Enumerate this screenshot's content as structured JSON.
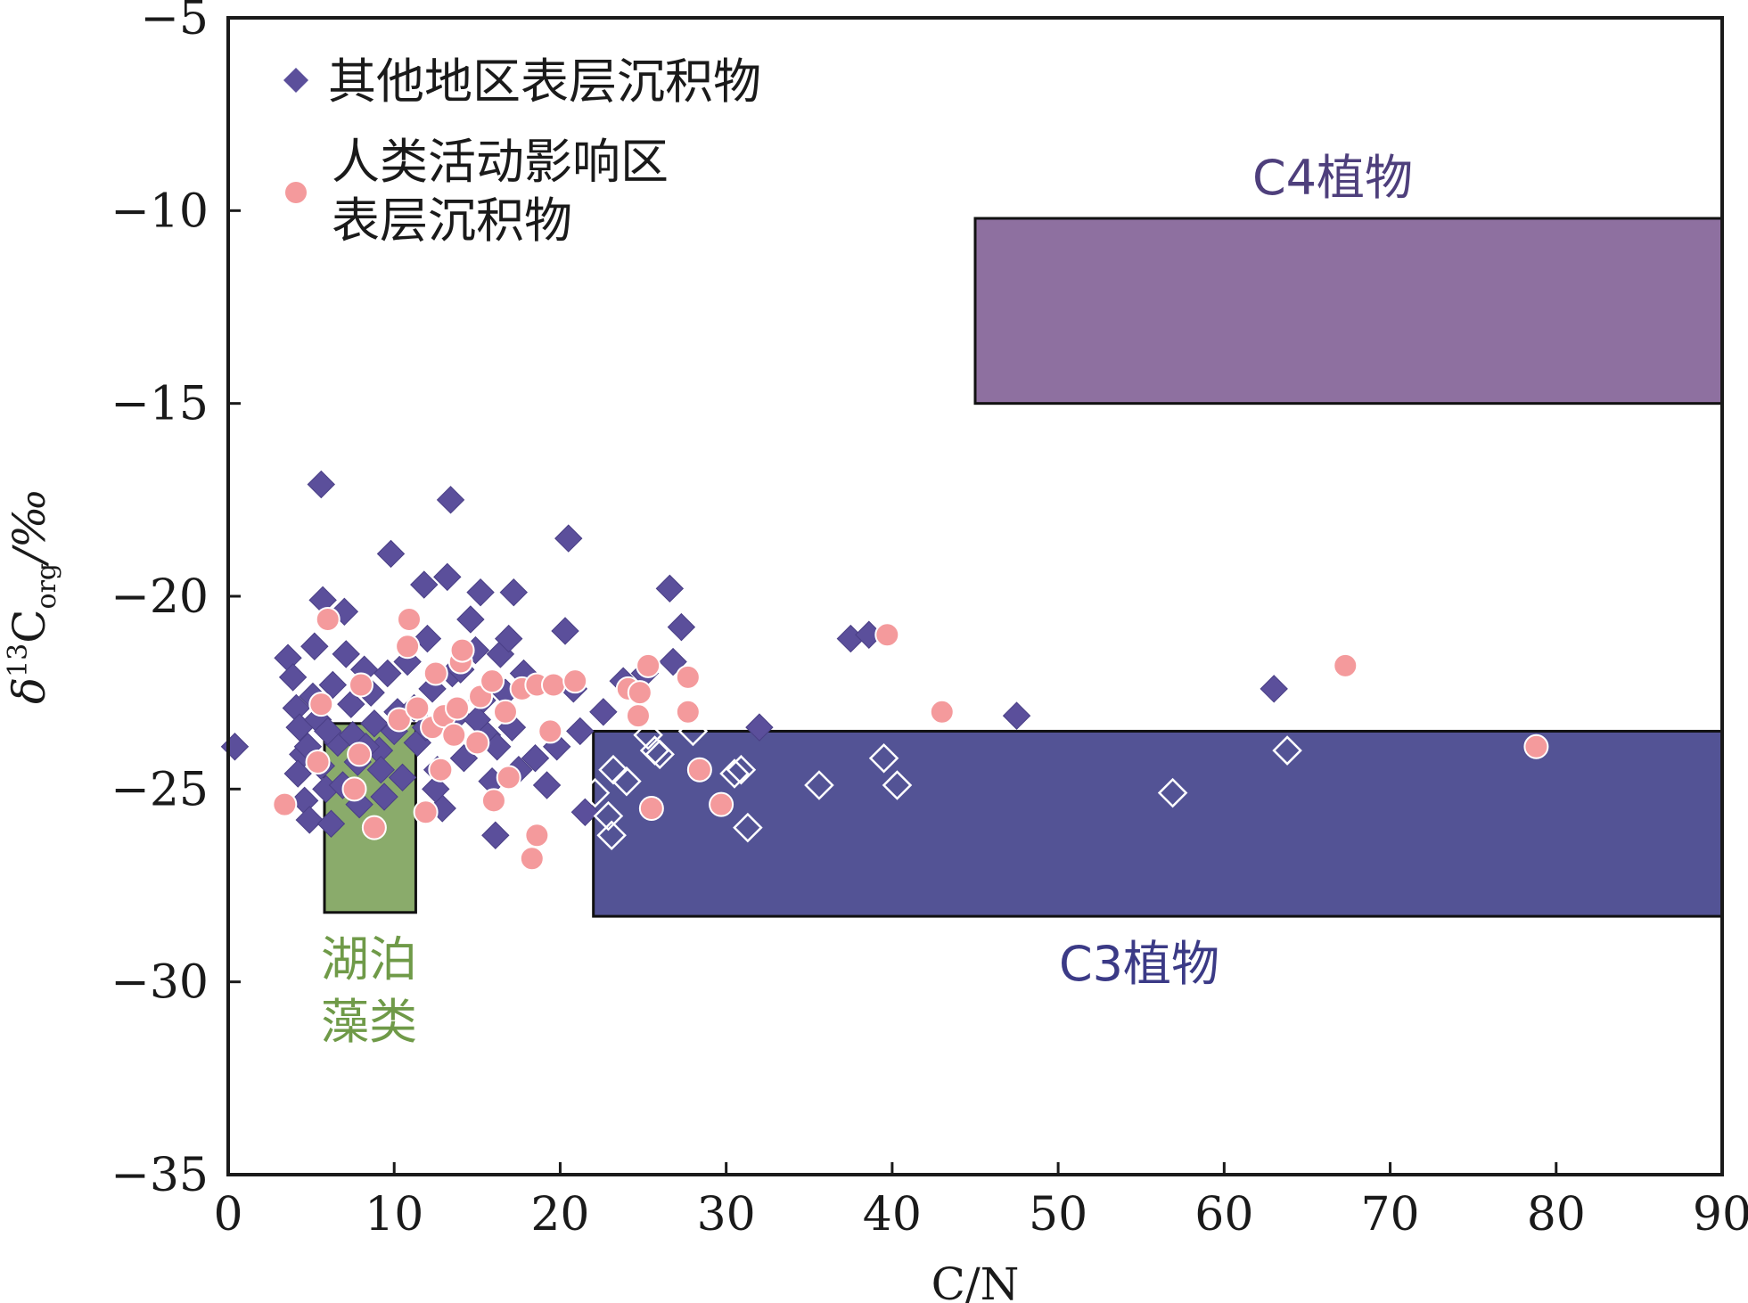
{
  "chart_data": {
    "type": "scatter",
    "title": "",
    "xlabel": "C/N",
    "ylabel": {
      "delta": "δ",
      "sup": "13",
      "base": "C",
      "sub": "org",
      "unit": "/‰"
    },
    "xlim": [
      0,
      90
    ],
    "ylim": [
      -35,
      -5
    ],
    "xticks": [
      0,
      10,
      20,
      30,
      40,
      50,
      60,
      70,
      80,
      90
    ],
    "yticks": [
      -5,
      -10,
      -15,
      -20,
      -25,
      -30,
      -35
    ],
    "xtick_labels": [
      "0",
      "10",
      "20",
      "30",
      "40",
      "50",
      "60",
      "70",
      "80",
      "90"
    ],
    "ytick_labels": [
      "−5",
      "−10",
      "−15",
      "−20",
      "−25",
      "−30",
      "−35"
    ],
    "grid": false,
    "legend_position": "top-left",
    "colors": {
      "series_other": "#5b4f9b",
      "series_human": "#f49a9c",
      "c4": "#8e70a0",
      "c3": "#535395",
      "algae": "#8aab6b",
      "algae_text": "#6f9a48",
      "c3_text": "#3b3a86",
      "c4_text": "#4e3f7c"
    },
    "regions": [
      {
        "id": "c4",
        "label": "C4植物",
        "x": [
          45,
          90
        ],
        "y": [
          -15,
          -10.2
        ]
      },
      {
        "id": "c3",
        "label": "C3植物",
        "x": [
          22,
          90
        ],
        "y": [
          -28.3,
          -23.5
        ]
      },
      {
        "id": "algae",
        "label_lines": [
          "湖泊",
          "藻类"
        ],
        "x": [
          5.8,
          11.3
        ],
        "y": [
          -28.2,
          -23.3
        ]
      }
    ],
    "series": [
      {
        "id": "other",
        "name": "其他地区表层沉积物",
        "marker": "diamond",
        "points": [
          [
            0.4,
            -23.9
          ],
          [
            3.6,
            -21.6
          ],
          [
            3.9,
            -22.1
          ],
          [
            4.1,
            -22.9
          ],
          [
            4.3,
            -23.4
          ],
          [
            4.5,
            -24.1
          ],
          [
            4.2,
            -24.6
          ],
          [
            4.6,
            -25.3
          ],
          [
            4.9,
            -25.8
          ],
          [
            5.2,
            -21.3
          ],
          [
            5.1,
            -22.6
          ],
          [
            5.4,
            -23.2
          ],
          [
            5.6,
            -24.4
          ],
          [
            5.9,
            -25.0
          ],
          [
            5.6,
            -17.1
          ],
          [
            5.7,
            -20.1
          ],
          [
            6.2,
            -25.9
          ],
          [
            6.3,
            -22.3
          ],
          [
            6.6,
            -23.8
          ],
          [
            6.9,
            -24.9
          ],
          [
            7.0,
            -20.4
          ],
          [
            7.1,
            -21.5
          ],
          [
            7.4,
            -22.8
          ],
          [
            7.5,
            -23.6
          ],
          [
            7.8,
            -24.3
          ],
          [
            7.9,
            -25.4
          ],
          [
            8.2,
            -21.9
          ],
          [
            8.6,
            -22.5
          ],
          [
            8.8,
            -23.3
          ],
          [
            9.1,
            -24.0
          ],
          [
            9.4,
            -25.2
          ],
          [
            9.6,
            -22.0
          ],
          [
            9.8,
            -18.9
          ],
          [
            10.2,
            -23.0
          ],
          [
            10.5,
            -24.7
          ],
          [
            10.8,
            -21.7
          ],
          [
            11.2,
            -22.9
          ],
          [
            11.4,
            -23.8
          ],
          [
            11.8,
            -19.7
          ],
          [
            12.0,
            -21.1
          ],
          [
            12.3,
            -22.4
          ],
          [
            12.6,
            -24.5
          ],
          [
            12.9,
            -25.5
          ],
          [
            13.2,
            -19.5
          ],
          [
            13.4,
            -17.5
          ],
          [
            13.5,
            -22.0
          ],
          [
            13.8,
            -23.1
          ],
          [
            14.2,
            -24.2
          ],
          [
            14.6,
            -20.6
          ],
          [
            14.9,
            -21.4
          ],
          [
            15.2,
            -19.9
          ],
          [
            15.3,
            -22.7
          ],
          [
            15.6,
            -23.6
          ],
          [
            15.9,
            -24.8
          ],
          [
            16.1,
            -26.2
          ],
          [
            16.4,
            -21.5
          ],
          [
            16.7,
            -22.5
          ],
          [
            16.9,
            -21.1
          ],
          [
            17.1,
            -23.4
          ],
          [
            17.2,
            -19.9
          ],
          [
            17.5,
            -24.5
          ],
          [
            17.8,
            -22.0
          ],
          [
            18.5,
            -24.2
          ],
          [
            19.2,
            -24.9
          ],
          [
            19.8,
            -23.9
          ],
          [
            20.3,
            -20.9
          ],
          [
            20.5,
            -18.5
          ],
          [
            20.8,
            -22.4
          ],
          [
            21.2,
            -23.5
          ],
          [
            21.5,
            -25.6
          ],
          [
            22.1,
            -25.1
          ],
          [
            22.6,
            -23.0
          ],
          [
            23.2,
            -24.5
          ],
          [
            23.1,
            -26.2
          ],
          [
            23.8,
            -22.2
          ],
          [
            24.0,
            -24.8
          ],
          [
            25.1,
            -22.0
          ],
          [
            25.3,
            -23.6
          ],
          [
            26.0,
            -24.1
          ],
          [
            26.6,
            -19.8
          ],
          [
            26.8,
            -21.7
          ],
          [
            27.3,
            -20.8
          ],
          [
            28.0,
            -23.5
          ],
          [
            30.5,
            -24.6
          ],
          [
            31.3,
            -26.0
          ],
          [
            32.0,
            -23.4
          ],
          [
            35.6,
            -24.9
          ],
          [
            37.5,
            -21.1
          ],
          [
            38.6,
            -21.0
          ],
          [
            39.5,
            -24.2
          ],
          [
            40.3,
            -24.9
          ],
          [
            47.5,
            -23.1
          ],
          [
            56.9,
            -25.1
          ],
          [
            63.0,
            -22.4
          ],
          [
            63.8,
            -24.0
          ],
          [
            4.8,
            -23.9
          ],
          [
            6.0,
            -23.5
          ],
          [
            8.3,
            -23.9
          ],
          [
            10.0,
            -23.5
          ],
          [
            11.9,
            -23.4
          ],
          [
            14.0,
            -21.9
          ],
          [
            15.0,
            -23.2
          ],
          [
            16.2,
            -23.9
          ],
          [
            12.5,
            -25.0
          ],
          [
            9.2,
            -24.5
          ],
          [
            22.9,
            -25.7
          ],
          [
            25.7,
            -24.0
          ],
          [
            30.9,
            -24.5
          ]
        ]
      },
      {
        "id": "human",
        "name_lines": [
          "人类活动影响区",
          "表层沉积物"
        ],
        "marker": "circle",
        "points": [
          [
            3.4,
            -25.4
          ],
          [
            5.4,
            -24.3
          ],
          [
            5.6,
            -22.8
          ],
          [
            6.0,
            -20.6
          ],
          [
            7.6,
            -25.0
          ],
          [
            7.9,
            -24.1
          ],
          [
            8.0,
            -22.3
          ],
          [
            8.8,
            -26.0
          ],
          [
            10.3,
            -23.2
          ],
          [
            10.9,
            -20.6
          ],
          [
            10.8,
            -21.3
          ],
          [
            11.4,
            -22.9
          ],
          [
            11.9,
            -25.6
          ],
          [
            12.3,
            -23.4
          ],
          [
            12.5,
            -22.0
          ],
          [
            12.8,
            -24.5
          ],
          [
            13.0,
            -23.1
          ],
          [
            13.6,
            -23.6
          ],
          [
            13.8,
            -22.9
          ],
          [
            14.0,
            -21.7
          ],
          [
            14.1,
            -21.4
          ],
          [
            15.0,
            -23.8
          ],
          [
            15.2,
            -22.6
          ],
          [
            15.9,
            -22.2
          ],
          [
            16.0,
            -25.3
          ],
          [
            16.7,
            -23.0
          ],
          [
            16.9,
            -24.7
          ],
          [
            17.7,
            -22.4
          ],
          [
            18.3,
            -26.8
          ],
          [
            18.6,
            -26.2
          ],
          [
            18.6,
            -22.3
          ],
          [
            19.4,
            -23.5
          ],
          [
            19.6,
            -22.3
          ],
          [
            20.9,
            -22.2
          ],
          [
            24.1,
            -22.4
          ],
          [
            24.7,
            -23.1
          ],
          [
            24.8,
            -22.5
          ],
          [
            25.3,
            -21.8
          ],
          [
            25.5,
            -25.5
          ],
          [
            27.7,
            -22.1
          ],
          [
            27.7,
            -23.0
          ],
          [
            28.4,
            -24.5
          ],
          [
            29.7,
            -25.4
          ],
          [
            39.7,
            -21.0
          ],
          [
            43.0,
            -23.0
          ],
          [
            67.3,
            -21.8
          ],
          [
            78.8,
            -23.9
          ]
        ]
      }
    ]
  }
}
